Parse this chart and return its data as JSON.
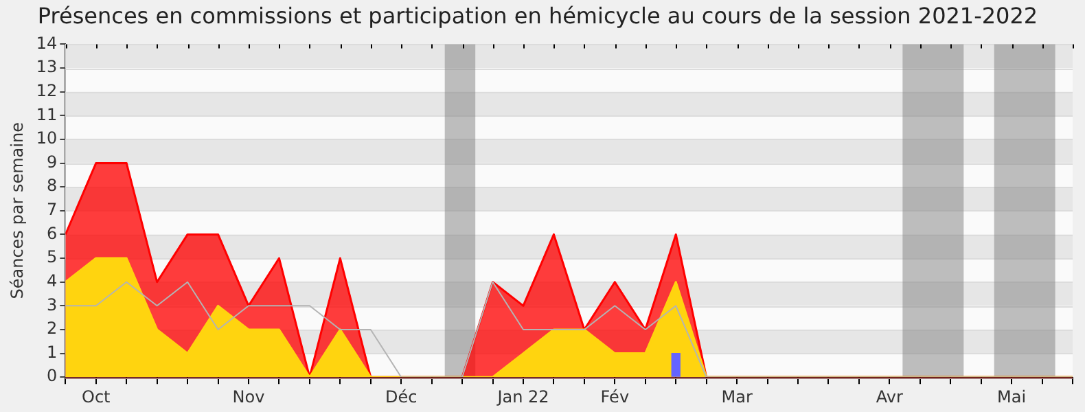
{
  "chart_data": {
    "type": "area",
    "title": "Présences en commissions et participation en hémicycle au cours de la session 2021-2022",
    "ylabel": "Séances par semaine",
    "x": [
      "2021-10-04",
      "2021-10-11",
      "2021-10-18",
      "2021-10-25",
      "2021-11-01",
      "2021-11-08",
      "2021-11-15",
      "2021-11-22",
      "2021-11-29",
      "2021-12-06",
      "2021-12-13",
      "2021-12-20",
      "2021-12-27",
      "2022-01-03",
      "2022-01-10",
      "2022-01-17",
      "2022-01-24",
      "2022-01-31",
      "2022-02-07",
      "2022-02-14",
      "2022-02-21",
      "2022-02-28",
      "2022-03-07",
      "2022-03-14",
      "2022-03-21",
      "2022-03-28",
      "2022-04-04",
      "2022-04-11",
      "2022-04-18",
      "2022-04-25",
      "2022-05-02",
      "2022-05-09",
      "2022-05-16",
      "2022-05-23"
    ],
    "xlim": [
      "2021-10-04",
      "2022-05-23"
    ],
    "xticks": [
      {
        "value": "2021-10-04",
        "label": null
      },
      {
        "value": "2021-10-11",
        "label": "Oct"
      },
      {
        "value": "2021-10-18",
        "label": null
      },
      {
        "value": "2021-10-25",
        "label": null
      },
      {
        "value": "2021-11-01",
        "label": null
      },
      {
        "value": "2021-11-08",
        "label": null
      },
      {
        "value": "2021-11-15",
        "label": "Nov"
      },
      {
        "value": "2021-11-22",
        "label": null
      },
      {
        "value": "2021-11-29",
        "label": null
      },
      {
        "value": "2021-12-06",
        "label": null
      },
      {
        "value": "2021-12-13",
        "label": null
      },
      {
        "value": "2021-12-20",
        "label": "Déc"
      },
      {
        "value": "2021-12-27",
        "label": null
      },
      {
        "value": "2022-01-03",
        "label": null
      },
      {
        "value": "2022-01-10",
        "label": null
      },
      {
        "value": "2022-01-17",
        "label": "Jan 22"
      },
      {
        "value": "2022-01-24",
        "label": null
      },
      {
        "value": "2022-01-31",
        "label": null
      },
      {
        "value": "2022-02-07",
        "label": "Fév"
      },
      {
        "value": "2022-02-14",
        "label": null
      },
      {
        "value": "2022-02-21",
        "label": null
      },
      {
        "value": "2022-02-28",
        "label": null
      },
      {
        "value": "2022-03-07",
        "label": "Mar"
      },
      {
        "value": "2022-03-14",
        "label": null
      },
      {
        "value": "2022-03-21",
        "label": null
      },
      {
        "value": "2022-03-28",
        "label": null
      },
      {
        "value": "2022-04-04",
        "label": null
      },
      {
        "value": "2022-04-11",
        "label": "Avr"
      },
      {
        "value": "2022-04-18",
        "label": null
      },
      {
        "value": "2022-04-25",
        "label": null
      },
      {
        "value": "2022-05-02",
        "label": null
      },
      {
        "value": "2022-05-09",
        "label": "Mai"
      },
      {
        "value": "2022-05-16",
        "label": null
      },
      {
        "value": "2022-05-23",
        "label": null
      }
    ],
    "ylim": [
      0,
      14
    ],
    "yticks": [
      0,
      1,
      2,
      3,
      4,
      5,
      6,
      7,
      8,
      9,
      10,
      11,
      12,
      13,
      14
    ],
    "grid": "y",
    "bands": [
      {
        "axis": "x",
        "from": "2021-12-30",
        "to": "2022-01-06",
        "color": "#808080"
      },
      {
        "axis": "x",
        "from": "2022-04-14",
        "to": "2022-04-28",
        "color": "#808080"
      },
      {
        "axis": "x",
        "from": "2022-05-05",
        "to": "2022-05-19",
        "color": "#808080"
      }
    ],
    "series": [
      {
        "color": "#ff0000",
        "values": [
          6,
          9,
          9,
          4,
          6,
          6,
          3,
          5,
          0,
          5,
          0,
          0,
          0,
          0,
          4,
          3,
          6,
          2,
          4,
          2,
          6,
          0,
          0,
          0,
          0,
          0,
          0,
          0,
          0,
          0,
          0,
          0,
          0,
          0
        ]
      },
      {
        "color": "#ffd40f",
        "values": [
          4,
          5,
          5,
          2,
          1,
          3,
          2,
          2,
          0,
          2,
          0,
          0,
          0,
          0,
          0,
          1,
          2,
          2,
          1,
          1,
          4,
          0,
          0,
          0,
          0,
          0,
          0,
          0,
          0,
          0,
          0,
          0,
          0,
          0
        ]
      },
      {
        "type": "line",
        "color": "#b4b4b4",
        "values": [
          3,
          3,
          4,
          3,
          4,
          2,
          3,
          3,
          3,
          2,
          2,
          0,
          0,
          0,
          4,
          2,
          2,
          2,
          3,
          2,
          3,
          0,
          0,
          0,
          0,
          0,
          0,
          0,
          0,
          0,
          0,
          0,
          0,
          0
        ]
      },
      {
        "type": "bar",
        "color": "#6464ff",
        "values": [
          null,
          null,
          null,
          null,
          null,
          null,
          null,
          null,
          null,
          null,
          null,
          null,
          null,
          null,
          null,
          null,
          null,
          null,
          null,
          null,
          1,
          null,
          null,
          null,
          null,
          null,
          null,
          null,
          null,
          null,
          null,
          null,
          null,
          null
        ]
      }
    ]
  }
}
